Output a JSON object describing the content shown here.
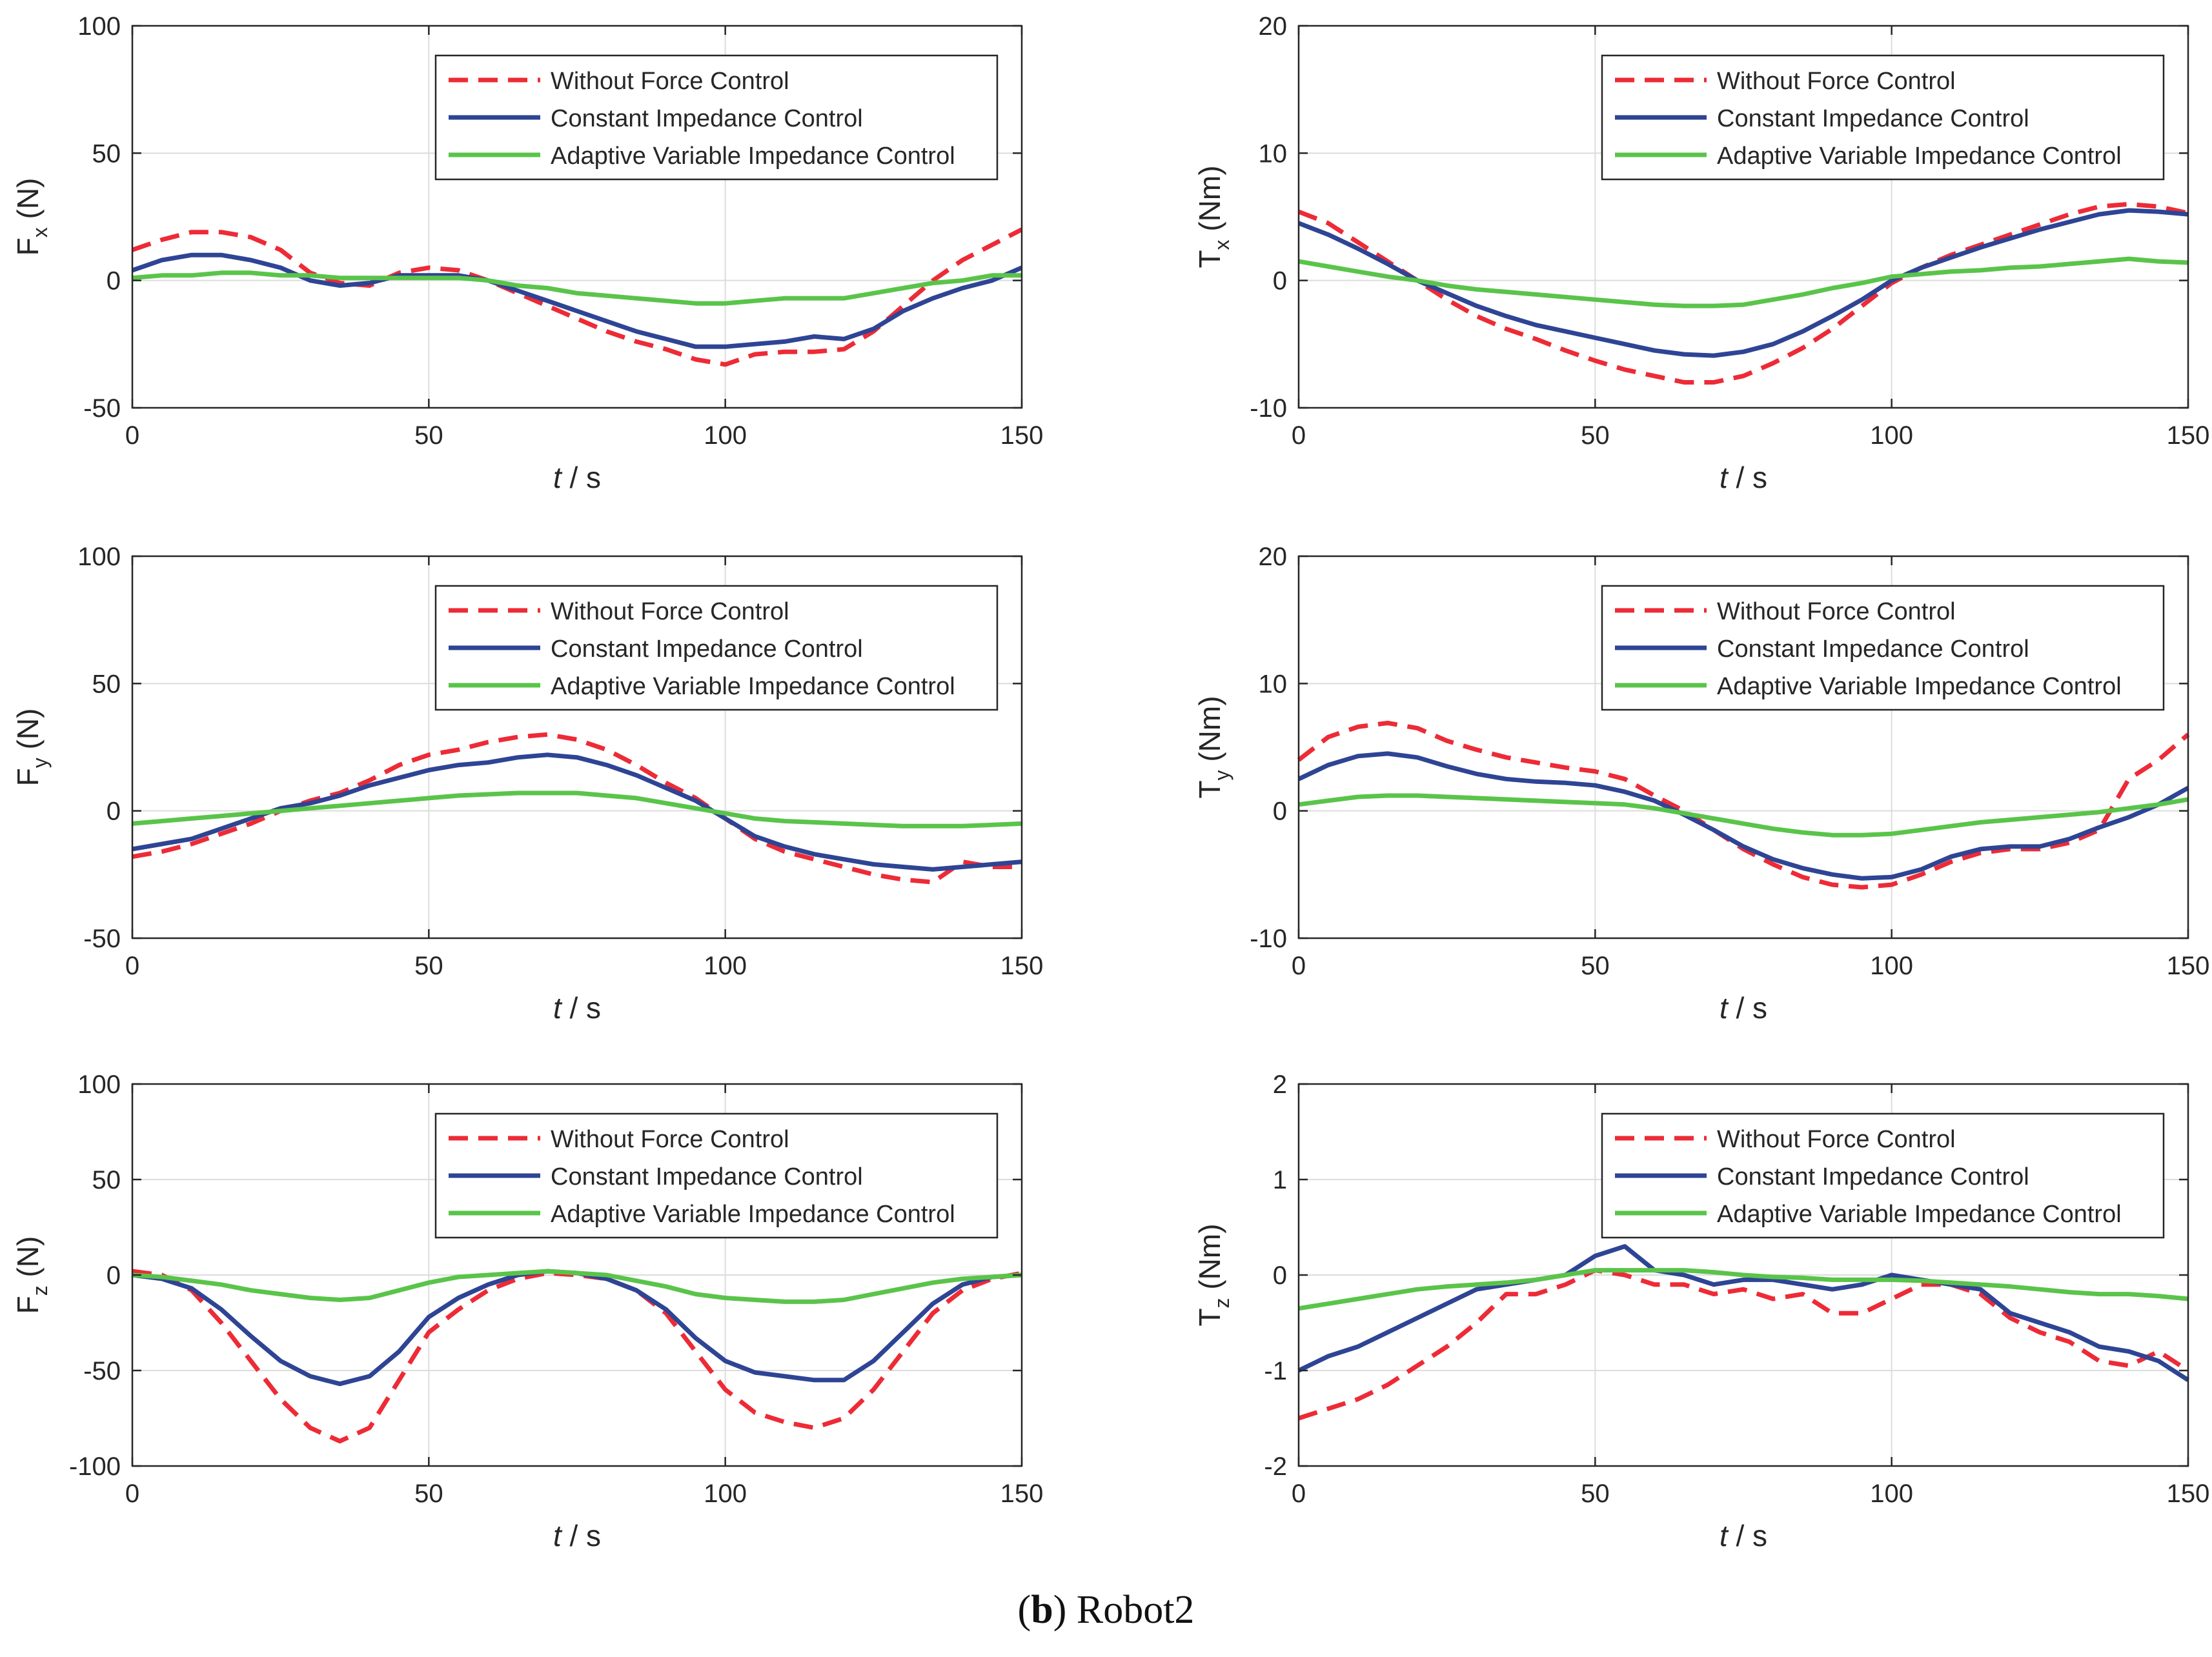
{
  "caption": {
    "label": "b",
    "text": "Robot2"
  },
  "legend_labels": [
    "Without Force Control",
    "Constant Impedance Control",
    "Adaptive Variable Impedance Control"
  ],
  "series_colors": {
    "without": "#ed2b36",
    "constant": "#2e4494",
    "adaptive": "#5ac44a"
  },
  "chart_data": [
    {
      "type": "line",
      "ylabel_main": "F",
      "ylabel_sub": "x",
      "ylabel_unit": "(N)",
      "xlabel_var": "t",
      "xlabel_unit": "/ s",
      "xlim": [
        0,
        150
      ],
      "ylim": [
        -50,
        100
      ],
      "xticks": [
        0,
        50,
        100,
        150
      ],
      "yticks": [
        -50,
        0,
        50,
        100
      ],
      "grid": true,
      "legend": "top-right",
      "x": [
        0,
        5,
        10,
        15,
        20,
        25,
        30,
        35,
        40,
        45,
        50,
        55,
        60,
        65,
        70,
        75,
        80,
        85,
        90,
        95,
        100,
        105,
        110,
        115,
        120,
        125,
        130,
        135,
        140,
        145,
        150
      ],
      "series": [
        {
          "name": "Without Force Control",
          "values": [
            12,
            16,
            19,
            19,
            17,
            12,
            3,
            -1,
            -2,
            3,
            5,
            4,
            0,
            -5,
            -10,
            -15,
            -20,
            -24,
            -27,
            -31,
            -33,
            -29,
            -28,
            -28,
            -27,
            -20,
            -10,
            0,
            8,
            14,
            20
          ]
        },
        {
          "name": "Constant Impedance Control",
          "values": [
            4,
            8,
            10,
            10,
            8,
            5,
            0,
            -2,
            -1,
            2,
            2,
            2,
            0,
            -4,
            -8,
            -12,
            -16,
            -20,
            -23,
            -26,
            -26,
            -25,
            -24,
            -22,
            -23,
            -19,
            -12,
            -7,
            -3,
            0,
            5
          ]
        },
        {
          "name": "Adaptive Variable Impedance Control",
          "values": [
            1,
            2,
            2,
            3,
            3,
            2,
            2,
            1,
            1,
            1,
            1,
            1,
            0,
            -2,
            -3,
            -5,
            -6,
            -7,
            -8,
            -9,
            -9,
            -8,
            -7,
            -7,
            -7,
            -5,
            -3,
            -1,
            0,
            2,
            2
          ]
        }
      ]
    },
    {
      "type": "line",
      "ylabel_main": "T",
      "ylabel_sub": "x",
      "ylabel_unit": "(Nm)",
      "xlabel_var": "t",
      "xlabel_unit": "/ s",
      "xlim": [
        0,
        150
      ],
      "ylim": [
        -10,
        20
      ],
      "xticks": [
        0,
        50,
        100,
        150
      ],
      "yticks": [
        -10,
        0,
        10,
        20
      ],
      "grid": true,
      "legend": "top-right",
      "x": [
        0,
        5,
        10,
        15,
        20,
        25,
        30,
        35,
        40,
        45,
        50,
        55,
        60,
        65,
        70,
        75,
        80,
        85,
        90,
        95,
        100,
        105,
        110,
        115,
        120,
        125,
        130,
        135,
        140,
        145,
        150
      ],
      "series": [
        {
          "name": "Without Force Control",
          "values": [
            5.4,
            4.5,
            3,
            1.5,
            0,
            -1.5,
            -2.8,
            -3.8,
            -4.6,
            -5.5,
            -6.3,
            -7,
            -7.5,
            -8,
            -8,
            -7.5,
            -6.5,
            -5.3,
            -3.8,
            -2,
            -0.2,
            1,
            2,
            2.8,
            3.6,
            4.4,
            5.2,
            5.8,
            6,
            5.8,
            5.3
          ]
        },
        {
          "name": "Constant Impedance Control",
          "values": [
            4.5,
            3.6,
            2.5,
            1.3,
            0,
            -1,
            -2,
            -2.8,
            -3.5,
            -4,
            -4.5,
            -5,
            -5.5,
            -5.8,
            -5.9,
            -5.6,
            -5,
            -4,
            -2.8,
            -1.5,
            0,
            1,
            1.8,
            2.6,
            3.3,
            4,
            4.6,
            5.2,
            5.5,
            5.4,
            5.2
          ]
        },
        {
          "name": "Adaptive Variable Impedance Control",
          "values": [
            1.5,
            1.1,
            0.7,
            0.3,
            0,
            -0.4,
            -0.7,
            -0.9,
            -1.1,
            -1.3,
            -1.5,
            -1.7,
            -1.9,
            -2,
            -2,
            -1.9,
            -1.5,
            -1.1,
            -0.6,
            -0.2,
            0.3,
            0.5,
            0.7,
            0.8,
            1,
            1.1,
            1.3,
            1.5,
            1.7,
            1.5,
            1.4
          ]
        }
      ]
    },
    {
      "type": "line",
      "ylabel_main": "F",
      "ylabel_sub": "y",
      "ylabel_unit": "(N)",
      "xlabel_var": "t",
      "xlabel_unit": "/ s",
      "xlim": [
        0,
        150
      ],
      "ylim": [
        -50,
        100
      ],
      "xticks": [
        0,
        50,
        100,
        150
      ],
      "yticks": [
        -50,
        0,
        50,
        100
      ],
      "grid": true,
      "legend": "top-right",
      "x": [
        0,
        5,
        10,
        15,
        20,
        25,
        30,
        35,
        40,
        45,
        50,
        55,
        60,
        65,
        70,
        75,
        80,
        85,
        90,
        95,
        100,
        105,
        110,
        115,
        120,
        125,
        130,
        135,
        140,
        145,
        150
      ],
      "series": [
        {
          "name": "Without Force Control",
          "values": [
            -18,
            -16,
            -13,
            -9,
            -5,
            0,
            4,
            7,
            12,
            18,
            22,
            24,
            27,
            29,
            30,
            28,
            24,
            18,
            11,
            5,
            -3,
            -11,
            -16,
            -19,
            -22,
            -25,
            -27,
            -28,
            -20,
            -22,
            -22
          ]
        },
        {
          "name": "Constant Impedance Control",
          "values": [
            -15,
            -13,
            -11,
            -7,
            -3,
            1,
            3,
            6,
            10,
            13,
            16,
            18,
            19,
            21,
            22,
            21,
            18,
            14,
            9,
            4,
            -3,
            -10,
            -14,
            -17,
            -19,
            -21,
            -22,
            -23,
            -22,
            -21,
            -20
          ]
        },
        {
          "name": "Adaptive Variable Impedance Control",
          "values": [
            -5,
            -4,
            -3,
            -2,
            -1,
            0,
            1,
            2,
            3,
            4,
            5,
            6,
            6.5,
            7,
            7,
            7,
            6,
            5,
            3,
            1,
            -1,
            -3,
            -4,
            -4.5,
            -5,
            -5.5,
            -6,
            -6,
            -6,
            -5.5,
            -5
          ]
        }
      ]
    },
    {
      "type": "line",
      "ylabel_main": "T",
      "ylabel_sub": "y",
      "ylabel_unit": "(Nm)",
      "xlabel_var": "t",
      "xlabel_unit": "/ s",
      "xlim": [
        0,
        150
      ],
      "ylim": [
        -10,
        20
      ],
      "xticks": [
        0,
        50,
        100,
        150
      ],
      "yticks": [
        -10,
        0,
        10,
        20
      ],
      "grid": true,
      "legend": "top-right",
      "x": [
        0,
        5,
        10,
        15,
        20,
        25,
        30,
        35,
        40,
        45,
        50,
        55,
        60,
        65,
        70,
        75,
        80,
        85,
        90,
        95,
        100,
        105,
        110,
        115,
        120,
        125,
        130,
        135,
        140,
        145,
        150
      ],
      "series": [
        {
          "name": "Without Force Control",
          "values": [
            4,
            5.8,
            6.6,
            6.9,
            6.5,
            5.5,
            4.8,
            4.2,
            3.8,
            3.4,
            3.1,
            2.5,
            1.2,
            0,
            -1.5,
            -3,
            -4.2,
            -5.2,
            -5.8,
            -6,
            -5.8,
            -5,
            -4,
            -3.3,
            -3,
            -3,
            -2.5,
            -1.5,
            2.5,
            4,
            6
          ]
        },
        {
          "name": "Constant Impedance Control",
          "values": [
            2.5,
            3.6,
            4.3,
            4.5,
            4.2,
            3.5,
            2.9,
            2.5,
            2.3,
            2.2,
            2,
            1.5,
            0.8,
            -0.3,
            -1.5,
            -2.8,
            -3.8,
            -4.5,
            -5,
            -5.3,
            -5.2,
            -4.6,
            -3.6,
            -3,
            -2.8,
            -2.8,
            -2.2,
            -1.3,
            -0.5,
            0.5,
            1.8
          ]
        },
        {
          "name": "Adaptive Variable Impedance Control",
          "values": [
            0.5,
            0.8,
            1.1,
            1.2,
            1.2,
            1.1,
            1,
            0.9,
            0.8,
            0.7,
            0.6,
            0.5,
            0.2,
            -0.2,
            -0.6,
            -1,
            -1.4,
            -1.7,
            -1.9,
            -1.9,
            -1.8,
            -1.5,
            -1.2,
            -0.9,
            -0.7,
            -0.5,
            -0.3,
            -0.1,
            0.2,
            0.5,
            0.9
          ]
        }
      ]
    },
    {
      "type": "line",
      "ylabel_main": "F",
      "ylabel_sub": "z",
      "ylabel_unit": "(N)",
      "xlabel_var": "t",
      "xlabel_unit": "/ s",
      "xlim": [
        0,
        150
      ],
      "ylim": [
        -100,
        100
      ],
      "xticks": [
        0,
        50,
        100,
        150
      ],
      "yticks": [
        -100,
        -50,
        0,
        50,
        100
      ],
      "grid": true,
      "legend": "top-right",
      "x": [
        0,
        5,
        10,
        15,
        20,
        25,
        30,
        35,
        40,
        45,
        50,
        55,
        60,
        65,
        70,
        75,
        80,
        85,
        90,
        95,
        100,
        105,
        110,
        115,
        120,
        125,
        130,
        135,
        140,
        145,
        150
      ],
      "series": [
        {
          "name": "Without Force Control",
          "values": [
            2,
            0,
            -8,
            -25,
            -45,
            -65,
            -80,
            -87,
            -80,
            -55,
            -30,
            -18,
            -8,
            -2,
            1,
            0,
            -2,
            -8,
            -20,
            -40,
            -60,
            -72,
            -77,
            -80,
            -75,
            -60,
            -40,
            -20,
            -8,
            -2,
            1
          ]
        },
        {
          "name": "Constant Impedance Control",
          "values": [
            0,
            -2,
            -7,
            -18,
            -32,
            -45,
            -53,
            -57,
            -53,
            -40,
            -22,
            -12,
            -5,
            0,
            2,
            1,
            -2,
            -8,
            -18,
            -33,
            -45,
            -51,
            -53,
            -55,
            -55,
            -45,
            -30,
            -15,
            -5,
            -1,
            0
          ]
        },
        {
          "name": "Adaptive Variable Impedance Control",
          "values": [
            0,
            -1,
            -3,
            -5,
            -8,
            -10,
            -12,
            -13,
            -12,
            -8,
            -4,
            -1,
            0,
            1,
            2,
            1,
            0,
            -3,
            -6,
            -10,
            -12,
            -13,
            -14,
            -14,
            -13,
            -10,
            -7,
            -4,
            -2,
            -1,
            0
          ]
        }
      ]
    },
    {
      "type": "line",
      "ylabel_main": "T",
      "ylabel_sub": "z",
      "ylabel_unit": "(Nm)",
      "xlabel_var": "t",
      "xlabel_unit": "/ s",
      "xlim": [
        0,
        150
      ],
      "ylim": [
        -2,
        2
      ],
      "xticks": [
        0,
        50,
        100,
        150
      ],
      "yticks": [
        -2,
        -1,
        0,
        1,
        2
      ],
      "grid": true,
      "legend": "top-right",
      "x": [
        0,
        5,
        10,
        15,
        20,
        25,
        30,
        35,
        40,
        45,
        50,
        55,
        60,
        65,
        70,
        75,
        80,
        85,
        90,
        95,
        100,
        105,
        110,
        115,
        120,
        125,
        130,
        135,
        140,
        145,
        150
      ],
      "series": [
        {
          "name": "Without Force Control",
          "values": [
            -1.5,
            -1.4,
            -1.3,
            -1.15,
            -0.95,
            -0.75,
            -0.5,
            -0.2,
            -0.2,
            -0.1,
            0.05,
            0,
            -0.1,
            -0.1,
            -0.2,
            -0.15,
            -0.25,
            -0.2,
            -0.4,
            -0.4,
            -0.25,
            -0.1,
            -0.1,
            -0.2,
            -0.45,
            -0.6,
            -0.7,
            -0.9,
            -0.95,
            -0.8,
            -1
          ]
        },
        {
          "name": "Constant Impedance Control",
          "values": [
            -1,
            -0.85,
            -0.75,
            -0.6,
            -0.45,
            -0.3,
            -0.15,
            -0.1,
            -0.05,
            0,
            0.2,
            0.3,
            0.05,
            0,
            -0.1,
            -0.05,
            -0.05,
            -0.1,
            -0.15,
            -0.1,
            0,
            -0.05,
            -0.1,
            -0.15,
            -0.4,
            -0.5,
            -0.6,
            -0.75,
            -0.8,
            -0.9,
            -1.1
          ]
        },
        {
          "name": "Adaptive Variable Impedance Control",
          "values": [
            -0.35,
            -0.3,
            -0.25,
            -0.2,
            -0.15,
            -0.12,
            -0.1,
            -0.08,
            -0.05,
            0,
            0.05,
            0.05,
            0.05,
            0.05,
            0.03,
            0,
            -0.02,
            -0.03,
            -0.05,
            -0.05,
            -0.05,
            -0.06,
            -0.08,
            -0.1,
            -0.12,
            -0.15,
            -0.18,
            -0.2,
            -0.2,
            -0.22,
            -0.25
          ]
        }
      ]
    }
  ]
}
